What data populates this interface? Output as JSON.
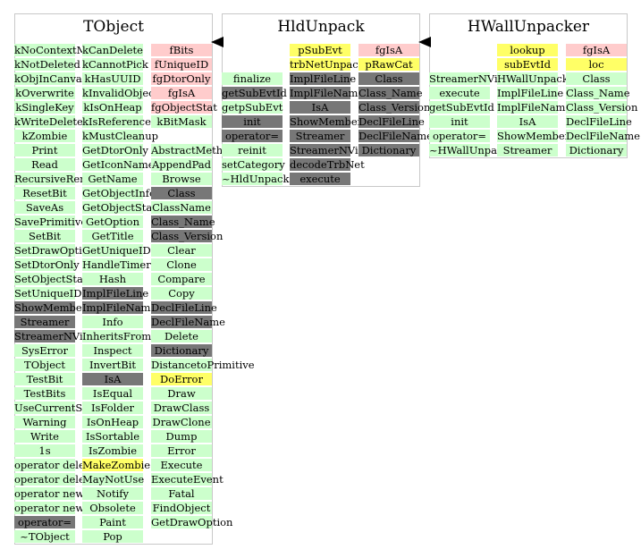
{
  "classes": [
    {
      "id": "tobject",
      "title": "TObject",
      "columns": [
        [
          {
            "label": "kNoContextMenu",
            "color": "green"
          },
          {
            "label": "kNotDeleted",
            "color": "green"
          },
          {
            "label": "kObjInCanvas",
            "color": "green"
          },
          {
            "label": "kOverwrite",
            "color": "green"
          },
          {
            "label": "kSingleKey",
            "color": "green"
          },
          {
            "label": "kWriteDelete",
            "color": "green"
          },
          {
            "label": "kZombie",
            "color": "green"
          },
          {
            "label": "Print",
            "color": "green"
          },
          {
            "label": "Read",
            "color": "green"
          },
          {
            "label": "RecursiveRemove",
            "color": "green"
          },
          {
            "label": "ResetBit",
            "color": "green"
          },
          {
            "label": "SaveAs",
            "color": "green"
          },
          {
            "label": "SavePrimitive",
            "color": "green"
          },
          {
            "label": "SetBit",
            "color": "green"
          },
          {
            "label": "SetDrawOption",
            "color": "green"
          },
          {
            "label": "SetDtorOnly",
            "color": "green"
          },
          {
            "label": "SetObjectStat",
            "color": "green"
          },
          {
            "label": "SetUniqueID",
            "color": "green"
          },
          {
            "label": "ShowMembers",
            "color": "gray"
          },
          {
            "label": "Streamer",
            "color": "gray"
          },
          {
            "label": "StreamerNVirtual",
            "color": "gray"
          },
          {
            "label": "SysError",
            "color": "green"
          },
          {
            "label": "TObject",
            "color": "green"
          },
          {
            "label": "TestBit",
            "color": "green"
          },
          {
            "label": "TestBits",
            "color": "green"
          },
          {
            "label": "UseCurrentStyle",
            "color": "green"
          },
          {
            "label": "Warning",
            "color": "green"
          },
          {
            "label": "Write",
            "color": "green"
          },
          {
            "label": "1s",
            "color": "green"
          },
          {
            "label": "operator delete",
            "color": "green"
          },
          {
            "label": "operator delete[]",
            "color": "green"
          },
          {
            "label": "operator new",
            "color": "green"
          },
          {
            "label": "operator new[]",
            "color": "green"
          },
          {
            "label": "operator=",
            "color": "gray"
          },
          {
            "label": "~TObject",
            "color": "green"
          }
        ],
        [
          {
            "label": "kCanDelete",
            "color": "green"
          },
          {
            "label": "kCannotPick",
            "color": "green"
          },
          {
            "label": "kHasUUID",
            "color": "green"
          },
          {
            "label": "kInvalidObject",
            "color": "green"
          },
          {
            "label": "kIsOnHeap",
            "color": "green"
          },
          {
            "label": "kIsReferenced",
            "color": "green"
          },
          {
            "label": "kMustCleanup",
            "color": "green"
          },
          {
            "label": "GetDtorOnly",
            "color": "green"
          },
          {
            "label": "GetIconName",
            "color": "green"
          },
          {
            "label": "GetName",
            "color": "green"
          },
          {
            "label": "GetObjectInfo",
            "color": "green"
          },
          {
            "label": "GetObjectStat",
            "color": "green"
          },
          {
            "label": "GetOption",
            "color": "green"
          },
          {
            "label": "GetTitle",
            "color": "green"
          },
          {
            "label": "GetUniqueID",
            "color": "green"
          },
          {
            "label": "HandleTimer",
            "color": "green"
          },
          {
            "label": "Hash",
            "color": "green"
          },
          {
            "label": "ImplFileLine",
            "color": "gray"
          },
          {
            "label": "ImplFileName",
            "color": "gray"
          },
          {
            "label": "Info",
            "color": "green"
          },
          {
            "label": "InheritsFrom",
            "color": "green"
          },
          {
            "label": "Inspect",
            "color": "green"
          },
          {
            "label": "InvertBit",
            "color": "green"
          },
          {
            "label": "IsA",
            "color": "gray"
          },
          {
            "label": "IsEqual",
            "color": "green"
          },
          {
            "label": "IsFolder",
            "color": "green"
          },
          {
            "label": "IsOnHeap",
            "color": "green"
          },
          {
            "label": "IsSortable",
            "color": "green"
          },
          {
            "label": "IsZombie",
            "color": "green"
          },
          {
            "label": "MakeZombie",
            "color": "yellow"
          },
          {
            "label": "MayNotUse",
            "color": "green"
          },
          {
            "label": "Notify",
            "color": "green"
          },
          {
            "label": "Obsolete",
            "color": "green"
          },
          {
            "label": "Paint",
            "color": "green"
          },
          {
            "label": "Pop",
            "color": "green"
          }
        ],
        [
          {
            "label": "fBits",
            "color": "red"
          },
          {
            "label": "fUniqueID",
            "color": "red"
          },
          {
            "label": "fgDtorOnly",
            "color": "red"
          },
          {
            "label": "fgIsA",
            "color": "red"
          },
          {
            "label": "fgObjectStat",
            "color": "red"
          },
          {
            "label": "kBitMask",
            "color": "green"
          },
          {
            "label": "",
            "color": "none"
          },
          {
            "label": "AbstractMethod",
            "color": "green"
          },
          {
            "label": "AppendPad",
            "color": "green"
          },
          {
            "label": "Browse",
            "color": "green"
          },
          {
            "label": "Class",
            "color": "gray"
          },
          {
            "label": "ClassName",
            "color": "green"
          },
          {
            "label": "Class_Name",
            "color": "gray"
          },
          {
            "label": "Class_Version",
            "color": "gray"
          },
          {
            "label": "Clear",
            "color": "green"
          },
          {
            "label": "Clone",
            "color": "green"
          },
          {
            "label": "Compare",
            "color": "green"
          },
          {
            "label": "Copy",
            "color": "green"
          },
          {
            "label": "DeclFileLine",
            "color": "gray"
          },
          {
            "label": "DeclFileName",
            "color": "gray"
          },
          {
            "label": "Delete",
            "color": "green"
          },
          {
            "label": "Dictionary",
            "color": "gray"
          },
          {
            "label": "DistancetoPrimitive",
            "color": "green"
          },
          {
            "label": "DoError",
            "color": "yellow"
          },
          {
            "label": "Draw",
            "color": "green"
          },
          {
            "label": "DrawClass",
            "color": "green"
          },
          {
            "label": "DrawClone",
            "color": "green"
          },
          {
            "label": "Dump",
            "color": "green"
          },
          {
            "label": "Error",
            "color": "green"
          },
          {
            "label": "Execute",
            "color": "green"
          },
          {
            "label": "ExecuteEvent",
            "color": "green"
          },
          {
            "label": "Fatal",
            "color": "green"
          },
          {
            "label": "FindObject",
            "color": "green"
          },
          {
            "label": "GetDrawOption",
            "color": "green"
          }
        ]
      ]
    },
    {
      "id": "hldunpack",
      "title": "HldUnpack",
      "columns": [
        [
          {
            "label": "",
            "color": "none"
          },
          {
            "label": "",
            "color": "none"
          },
          {
            "label": "finalize",
            "color": "green"
          },
          {
            "label": "getSubEvtId",
            "color": "gray"
          },
          {
            "label": "getpSubEvt",
            "color": "green"
          },
          {
            "label": "init",
            "color": "gray"
          },
          {
            "label": "operator=",
            "color": "gray"
          },
          {
            "label": "reinit",
            "color": "green"
          },
          {
            "label": "setCategory",
            "color": "green"
          },
          {
            "label": "~HldUnpack",
            "color": "green"
          }
        ],
        [
          {
            "label": "pSubEvt",
            "color": "yellow"
          },
          {
            "label": "trbNetUnpacker",
            "color": "yellow"
          },
          {
            "label": "ImplFileLine",
            "color": "gray"
          },
          {
            "label": "ImplFileName",
            "color": "gray"
          },
          {
            "label": "IsA",
            "color": "gray"
          },
          {
            "label": "ShowMembers",
            "color": "gray"
          },
          {
            "label": "Streamer",
            "color": "gray"
          },
          {
            "label": "StreamerNVirtual",
            "color": "gray"
          },
          {
            "label": "decodeTrbNet",
            "color": "gray"
          },
          {
            "label": "execute",
            "color": "gray"
          }
        ],
        [
          {
            "label": "fgIsA",
            "color": "red"
          },
          {
            "label": "pRawCat",
            "color": "yellow"
          },
          {
            "label": "Class",
            "color": "gray"
          },
          {
            "label": "Class_Name",
            "color": "gray"
          },
          {
            "label": "Class_Version",
            "color": "gray"
          },
          {
            "label": "DeclFileLine",
            "color": "gray"
          },
          {
            "label": "DeclFileName",
            "color": "gray"
          },
          {
            "label": "Dictionary",
            "color": "gray"
          }
        ]
      ]
    },
    {
      "id": "hwallunpacker",
      "title": "HWallUnpacker",
      "columns": [
        [
          {
            "label": "",
            "color": "none"
          },
          {
            "label": "",
            "color": "none"
          },
          {
            "label": "StreamerNVirtual",
            "color": "green"
          },
          {
            "label": "execute",
            "color": "green"
          },
          {
            "label": "getSubEvtId",
            "color": "green"
          },
          {
            "label": "init",
            "color": "green"
          },
          {
            "label": "operator=",
            "color": "green"
          },
          {
            "label": "~HWallUnpacker",
            "color": "green"
          }
        ],
        [
          {
            "label": "lookup",
            "color": "yellow"
          },
          {
            "label": "subEvtId",
            "color": "yellow"
          },
          {
            "label": "HWallUnpacker",
            "color": "green"
          },
          {
            "label": "ImplFileLine",
            "color": "green"
          },
          {
            "label": "ImplFileName",
            "color": "green"
          },
          {
            "label": "IsA",
            "color": "green"
          },
          {
            "label": "ShowMembers",
            "color": "green"
          },
          {
            "label": "Streamer",
            "color": "green"
          }
        ],
        [
          {
            "label": "fgIsA",
            "color": "red"
          },
          {
            "label": "loc",
            "color": "yellow"
          },
          {
            "label": "Class",
            "color": "green"
          },
          {
            "label": "Class_Name",
            "color": "green"
          },
          {
            "label": "Class_Version",
            "color": "green"
          },
          {
            "label": "DeclFileLine",
            "color": "green"
          },
          {
            "label": "DeclFileName",
            "color": "green"
          },
          {
            "label": "Dictionary",
            "color": "green"
          }
        ]
      ]
    }
  ],
  "colors": {
    "green": "#ccffcc",
    "gray": "#777777",
    "red": "#ffcccc",
    "yellow": "#ffff66",
    "border": "#c8c8c8",
    "arrow": "#000000"
  }
}
